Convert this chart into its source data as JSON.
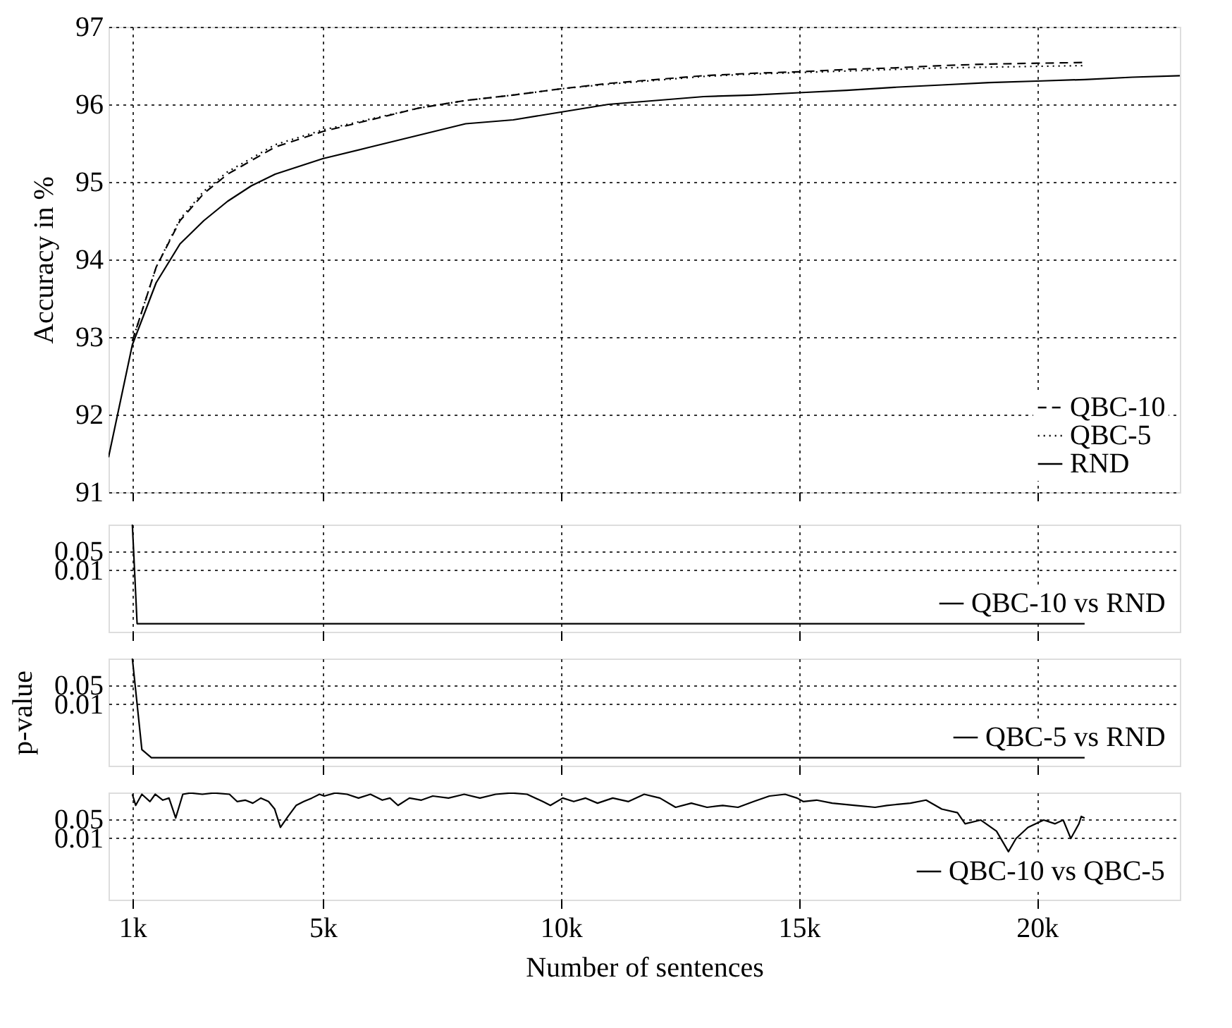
{
  "chart_data": [
    {
      "type": "line",
      "ylabel": "Accuracy in %",
      "xlim": [
        500,
        23000
      ],
      "xticks": [
        {
          "value": 1000,
          "label": null
        },
        {
          "value": 5000,
          "label": null
        },
        {
          "value": 10000,
          "label": null
        },
        {
          "value": 15000,
          "label": null
        },
        {
          "value": 20000,
          "label": null
        }
      ],
      "ylim": [
        91,
        97
      ],
      "yticks": [
        91,
        92,
        93,
        94,
        95,
        96,
        97
      ],
      "grid": true,
      "legend": "bottom right",
      "tick_labels": "y",
      "series": [
        {
          "name": "QBC-10",
          "color": "#000000",
          "line_style": "dashed",
          "x": [
            1000,
            1500,
            2000,
            2500,
            3000,
            4000,
            5000,
            6000,
            7000,
            8000,
            9000,
            10000,
            11000,
            12000,
            13000,
            14000,
            15000,
            16000,
            17000,
            18000,
            19000,
            20000,
            21000
          ],
          "values": [
            92.95,
            93.9,
            94.5,
            94.85,
            95.1,
            95.45,
            95.65,
            95.8,
            95.95,
            96.05,
            96.12,
            96.2,
            96.27,
            96.32,
            96.37,
            96.4,
            96.42,
            96.45,
            96.47,
            96.5,
            96.52,
            96.53,
            96.54
          ]
        },
        {
          "name": "QBC-5",
          "color": "#000000",
          "line_style": "dotted",
          "x": [
            1000,
            1500,
            2000,
            2500,
            3000,
            4000,
            5000,
            6000,
            7000,
            8000,
            9000,
            10000,
            11000,
            12000,
            13000,
            14000,
            15000,
            16000,
            17000,
            18000,
            19000,
            20000,
            21000
          ],
          "values": [
            92.95,
            93.9,
            94.52,
            94.88,
            95.13,
            95.48,
            95.67,
            95.81,
            95.95,
            96.05,
            96.12,
            96.2,
            96.26,
            96.31,
            96.36,
            96.39,
            96.41,
            96.43,
            96.45,
            96.47,
            96.48,
            96.49,
            96.5
          ]
        },
        {
          "name": "RND",
          "color": "#000000",
          "line_style": "solid",
          "x": [
            500,
            1000,
            1500,
            2000,
            2500,
            3000,
            3500,
            4000,
            5000,
            6000,
            7000,
            8000,
            9000,
            10000,
            11000,
            12000,
            13000,
            14000,
            15000,
            16000,
            17000,
            18000,
            19000,
            20000,
            21000,
            22000,
            23000
          ],
          "values": [
            91.45,
            92.9,
            93.7,
            94.2,
            94.5,
            94.75,
            94.95,
            95.1,
            95.3,
            95.45,
            95.6,
            95.75,
            95.8,
            95.9,
            96.0,
            96.05,
            96.1,
            96.12,
            96.15,
            96.18,
            96.22,
            96.25,
            96.28,
            96.3,
            96.32,
            96.35,
            96.37
          ]
        }
      ]
    },
    {
      "type": "line",
      "log": true,
      "xlim": [
        500,
        23000
      ],
      "xticks": [
        {
          "value": 1000,
          "label": null
        },
        {
          "value": 5000,
          "label": null
        },
        {
          "value": 10000,
          "label": null
        },
        {
          "value": 15000,
          "label": null
        },
        {
          "value": 20000,
          "label": null
        }
      ],
      "ylim": [
        5e-05,
        0.5
      ],
      "yticks": [
        0.05,
        0.01
      ],
      "grid": true,
      "legend": "bottom right",
      "tick_labels": "y",
      "series": [
        {
          "name": "QBC-10 vs RND",
          "color": "#000000",
          "x": [
            1000,
            1100,
            21000
          ],
          "values": [
            0.5,
            0.0001,
            0.0001
          ]
        }
      ]
    },
    {
      "type": "line",
      "log": true,
      "ylabel": "p-value",
      "xlim": [
        500,
        23000
      ],
      "xticks": [
        {
          "value": 1000,
          "label": null
        },
        {
          "value": 5000,
          "label": null
        },
        {
          "value": 10000,
          "label": null
        },
        {
          "value": 15000,
          "label": null
        },
        {
          "value": 20000,
          "label": null
        }
      ],
      "ylim": [
        5e-05,
        0.5
      ],
      "yticks": [
        0.05,
        0.01
      ],
      "grid": true,
      "legend": "bottom right",
      "tick_labels": "y",
      "series": [
        {
          "name": "QBC-5 vs RND",
          "color": "#000000",
          "x": [
            1000,
            1200,
            1400,
            21000
          ],
          "values": [
            0.5,
            0.0002,
            0.0001,
            0.0001
          ]
        }
      ]
    },
    {
      "type": "line",
      "log": true,
      "xlabel": "Number of sentences",
      "xlim": [
        500,
        23000
      ],
      "xticks": [
        {
          "value": 1000,
          "label": "1k"
        },
        {
          "value": 5000,
          "label": "5k"
        },
        {
          "value": 10000,
          "label": "10k"
        },
        {
          "value": 15000,
          "label": "15k"
        },
        {
          "value": 20000,
          "label": "20k"
        }
      ],
      "ylim": [
        5e-05,
        0.5
      ],
      "yticks": [
        0.05,
        0.01
      ],
      "grid": true,
      "legend": "bottom right",
      "series": [
        {
          "name": "QBC-10 vs QBC-5",
          "color": "#000000",
          "x": [
            1000,
            1070,
            1200,
            1370,
            1480,
            1640,
            1770,
            1910,
            2060,
            2220,
            2470,
            2710,
            3040,
            3200,
            3370,
            3530,
            3700,
            3860,
            3990,
            4110,
            4270,
            4440,
            4600,
            4770,
            4930,
            5030,
            5260,
            5510,
            5750,
            6000,
            6250,
            6410,
            6580,
            6820,
            7070,
            7310,
            7640,
            7970,
            8300,
            8630,
            8960,
            9290,
            9620,
            9780,
            10040,
            10270,
            10520,
            10770,
            11090,
            11420,
            11750,
            12080,
            12410,
            12740,
            13070,
            13400,
            13720,
            14050,
            14380,
            14710,
            14960,
            15090,
            15370,
            15700,
            16190,
            16600,
            16850,
            17340,
            17670,
            18000,
            18330,
            18490,
            18820,
            19150,
            19400,
            19560,
            19810,
            20140,
            20380,
            20550,
            20710,
            20880,
            20930,
            21000
          ],
          "values": [
            0.43,
            0.165,
            0.43,
            0.23,
            0.43,
            0.26,
            0.31,
            0.056,
            0.43,
            0.48,
            0.43,
            0.48,
            0.43,
            0.23,
            0.26,
            0.2,
            0.31,
            0.23,
            0.12,
            0.025,
            0.064,
            0.165,
            0.23,
            0.31,
            0.43,
            0.37,
            0.48,
            0.43,
            0.31,
            0.43,
            0.26,
            0.31,
            0.165,
            0.31,
            0.26,
            0.37,
            0.31,
            0.43,
            0.31,
            0.43,
            0.48,
            0.43,
            0.23,
            0.165,
            0.31,
            0.23,
            0.31,
            0.2,
            0.31,
            0.23,
            0.43,
            0.31,
            0.14,
            0.2,
            0.14,
            0.165,
            0.14,
            0.23,
            0.37,
            0.43,
            0.31,
            0.23,
            0.26,
            0.2,
            0.165,
            0.14,
            0.165,
            0.2,
            0.26,
            0.12,
            0.088,
            0.034,
            0.047,
            0.018,
            0.0031,
            0.0096,
            0.025,
            0.047,
            0.034,
            0.047,
            0.0096,
            0.034,
            0.064,
            0.056
          ]
        }
      ]
    }
  ]
}
